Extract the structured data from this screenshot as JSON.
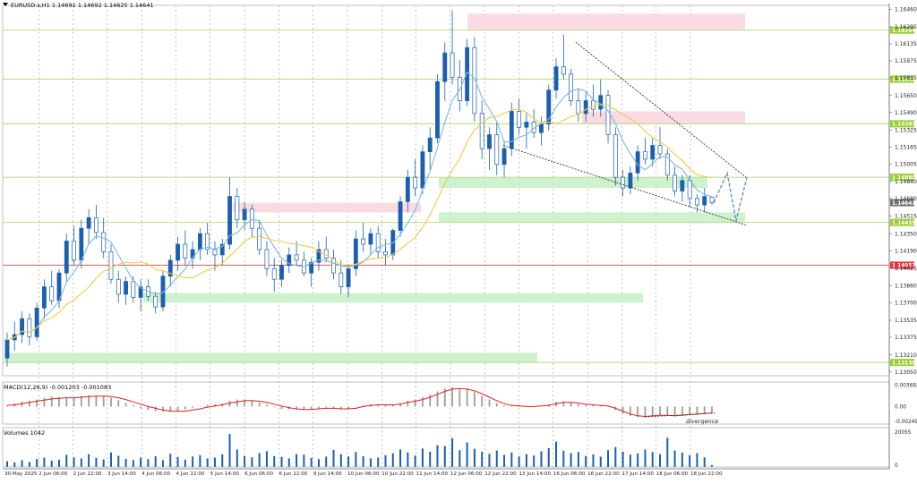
{
  "header": {
    "symbol_line": "EURUSD.s,H1  1.14691  1.14692  1.14625  1.14641"
  },
  "colors": {
    "bull_candle": "#1f5fa8",
    "bear_candle": "#1f5fa8",
    "ma_fast": "#7fb8e0",
    "ma_slow": "#f2c94c",
    "resistance_zone": "#f8d7de",
    "support_zone": "#c9f0c9",
    "level_line": "#b6d77a",
    "key_line": "#e05a5a",
    "macd_hist": "#9e9e9e",
    "macd_signal": "#e02020",
    "volume_bar": "#1f5fa8",
    "trend_line": "#333333",
    "price_tag_green": "#9acd32",
    "price_tag_red": "#e0303a",
    "price_tag_grey": "#707070"
  },
  "chart_data": [
    {
      "type": "candlestick",
      "title": "EURUSD.s,H1",
      "ohlc_last": {
        "open": 1.14691,
        "high": 1.14692,
        "low": 1.14625,
        "close": 1.14641
      },
      "y_axis_labels": [
        "1.16460",
        "1.16295",
        "1.16135",
        "1.15975",
        "1.15815",
        "1.15650",
        "1.15490",
        "1.15325",
        "1.15165",
        "1.15005",
        "1.14840",
        "1.14680",
        "1.14515",
        "1.14350",
        "1.14190",
        "1.14025",
        "1.13860",
        "1.13700",
        "1.13535",
        "1.13375",
        "1.13210",
        "1.13050"
      ],
      "ylim": [
        1.1303,
        1.1648
      ],
      "x_axis_labels": [
        "30 May 2025",
        "2 Jun 06:00",
        "2 Jun 22:00",
        "3 Jun 14:00",
        "4 Jun 06:00",
        "4 Jun 22:00",
        "5 Jun 14:00",
        "6 Jun 06:00",
        "6 Jun 22:00",
        "9 Jun 14:00",
        "10 Jun 06:00",
        "10 Jun 22:00",
        "11 Jun 14:00",
        "12 Jun 06:00",
        "12 Jun 22:00",
        "13 Jun 14:00",
        "16 Jun 06:00",
        "16 Jun 22:00",
        "17 Jun 14:00",
        "18 Jun 06:00",
        "18 Jun 22:00"
      ],
      "price_tags": [
        {
          "label": "1.16264",
          "value": 1.16264,
          "style": "green"
        },
        {
          "label": "1.15802",
          "value": 1.15802,
          "style": "green"
        },
        {
          "label": "1.15383",
          "value": 1.15383,
          "style": "green"
        },
        {
          "label": "1.14880",
          "value": 1.1488,
          "style": "green"
        },
        {
          "label": "1.14641",
          "value": 1.14641,
          "style": "grey"
        },
        {
          "label": "1.14455",
          "value": 1.14455,
          "style": "green"
        },
        {
          "label": "1.14053",
          "value": 1.14053,
          "style": "red"
        },
        {
          "label": "1.13138",
          "value": 1.13138,
          "style": "green"
        }
      ],
      "zones": [
        {
          "kind": "resistance",
          "from": 1.16264,
          "to": 1.1642,
          "start_label": "12 Jun 06:00"
        },
        {
          "kind": "resistance",
          "from": 1.15383,
          "to": 1.155,
          "start_label": "16 Jun 22:00"
        },
        {
          "kind": "resistance",
          "from": 1.1455,
          "to": 1.1464,
          "start_label": "5 Jun 14:00"
        },
        {
          "kind": "support",
          "from": 1.1478,
          "to": 1.1488,
          "start_label": "11 Jun 14:00"
        },
        {
          "kind": "support",
          "from": 1.14455,
          "to": 1.1455,
          "start_label": "11 Jun 14:00"
        },
        {
          "kind": "support",
          "from": 1.137,
          "to": 1.1379,
          "start_label": "4 Jun 06:00"
        },
        {
          "kind": "support",
          "from": 1.13138,
          "to": 1.1323,
          "start_label": "30 May 2025"
        }
      ],
      "candles": [
        [
          1.1318,
          1.1342,
          1.131,
          1.1335
        ],
        [
          1.1335,
          1.1352,
          1.1325,
          1.134
        ],
        [
          1.134,
          1.1362,
          1.1332,
          1.1355
        ],
        [
          1.1355,
          1.136,
          1.133,
          1.1338
        ],
        [
          1.1338,
          1.137,
          1.1334,
          1.1365
        ],
        [
          1.1365,
          1.1392,
          1.1355,
          1.1385
        ],
        [
          1.1385,
          1.14,
          1.1368,
          1.1372
        ],
        [
          1.1372,
          1.1402,
          1.1365,
          1.1398
        ],
        [
          1.1398,
          1.1435,
          1.139,
          1.1428
        ],
        [
          1.1428,
          1.1442,
          1.1405,
          1.141
        ],
        [
          1.141,
          1.1448,
          1.1402,
          1.144
        ],
        [
          1.144,
          1.1458,
          1.1425,
          1.145
        ],
        [
          1.145,
          1.1462,
          1.143,
          1.1436
        ],
        [
          1.1436,
          1.145,
          1.1412,
          1.1418
        ],
        [
          1.1418,
          1.1425,
          1.1388,
          1.1392
        ],
        [
          1.1392,
          1.14,
          1.137,
          1.1378
        ],
        [
          1.1378,
          1.1395,
          1.1368,
          1.139
        ],
        [
          1.139,
          1.1395,
          1.137,
          1.1375
        ],
        [
          1.1375,
          1.1392,
          1.1362,
          1.1385
        ],
        [
          1.1385,
          1.1392,
          1.1372,
          1.1376
        ],
        [
          1.1376,
          1.138,
          1.136,
          1.1366
        ],
        [
          1.1366,
          1.14,
          1.1362,
          1.1395
        ],
        [
          1.1395,
          1.1415,
          1.1385,
          1.141
        ],
        [
          1.141,
          1.1432,
          1.14,
          1.1425
        ],
        [
          1.1425,
          1.1438,
          1.1405,
          1.1412
        ],
        [
          1.1412,
          1.1428,
          1.1402,
          1.142
        ],
        [
          1.142,
          1.144,
          1.141,
          1.1435
        ],
        [
          1.1435,
          1.1445,
          1.1415,
          1.142
        ],
        [
          1.142,
          1.1428,
          1.14,
          1.1415
        ],
        [
          1.1415,
          1.143,
          1.1405,
          1.1425
        ],
        [
          1.1425,
          1.1488,
          1.142,
          1.147
        ],
        [
          1.147,
          1.1478,
          1.144,
          1.1448
        ],
        [
          1.1448,
          1.1465,
          1.1438,
          1.1458
        ],
        [
          1.1458,
          1.1462,
          1.1432,
          1.144
        ],
        [
          1.144,
          1.1448,
          1.1415,
          1.142
        ],
        [
          1.142,
          1.1428,
          1.1395,
          1.1402
        ],
        [
          1.1402,
          1.1412,
          1.138,
          1.1392
        ],
        [
          1.1392,
          1.141,
          1.1385,
          1.1405
        ],
        [
          1.1405,
          1.1422,
          1.1398,
          1.1415
        ],
        [
          1.1415,
          1.1428,
          1.1405,
          1.141
        ],
        [
          1.141,
          1.1418,
          1.1395,
          1.1398
        ],
        [
          1.1398,
          1.1412,
          1.1385,
          1.1408
        ],
        [
          1.1408,
          1.1428,
          1.14,
          1.142
        ],
        [
          1.142,
          1.1432,
          1.1408,
          1.1412
        ],
        [
          1.1412,
          1.142,
          1.1392,
          1.1398
        ],
        [
          1.1398,
          1.141,
          1.1378,
          1.1385
        ],
        [
          1.1385,
          1.1405,
          1.1375,
          1.1402
        ],
        [
          1.1402,
          1.1438,
          1.1395,
          1.143
        ],
        [
          1.143,
          1.1445,
          1.1418,
          1.1425
        ],
        [
          1.1425,
          1.144,
          1.1415,
          1.1435
        ],
        [
          1.1435,
          1.1442,
          1.1412,
          1.1418
        ],
        [
          1.1418,
          1.143,
          1.1405,
          1.1415
        ],
        [
          1.1415,
          1.144,
          1.141,
          1.1438
        ],
        [
          1.1438,
          1.147,
          1.1432,
          1.1465
        ],
        [
          1.1465,
          1.1495,
          1.1455,
          1.1488
        ],
        [
          1.1488,
          1.1505,
          1.147,
          1.1478
        ],
        [
          1.1478,
          1.1518,
          1.1472,
          1.1512
        ],
        [
          1.1512,
          1.1535,
          1.1495,
          1.1525
        ],
        [
          1.1525,
          1.1585,
          1.152,
          1.1578
        ],
        [
          1.1578,
          1.1615,
          1.156,
          1.1605
        ],
        [
          1.1605,
          1.1645,
          1.1575,
          1.1582
        ],
        [
          1.1582,
          1.1598,
          1.155,
          1.156
        ],
        [
          1.156,
          1.1618,
          1.1555,
          1.161
        ],
        [
          1.161,
          1.162,
          1.154,
          1.1548
        ],
        [
          1.1548,
          1.156,
          1.1505,
          1.1515
        ],
        [
          1.1515,
          1.1535,
          1.1495,
          1.1528
        ],
        [
          1.1528,
          1.154,
          1.149,
          1.15
        ],
        [
          1.15,
          1.1522,
          1.1488,
          1.1515
        ],
        [
          1.1515,
          1.1558,
          1.1508,
          1.155
        ],
        [
          1.155,
          1.1562,
          1.1528,
          1.1535
        ],
        [
          1.1535,
          1.1548,
          1.1515,
          1.154
        ],
        [
          1.154,
          1.1552,
          1.1525,
          1.153
        ],
        [
          1.153,
          1.1545,
          1.1518,
          1.1538
        ],
        [
          1.1538,
          1.1575,
          1.1532,
          1.157
        ],
        [
          1.157,
          1.16,
          1.1562,
          1.1592
        ],
        [
          1.1592,
          1.1622,
          1.158,
          1.1585
        ],
        [
          1.1585,
          1.159,
          1.1555,
          1.156
        ],
        [
          1.156,
          1.1572,
          1.154,
          1.1548
        ],
        [
          1.1548,
          1.1568,
          1.154,
          1.156
        ],
        [
          1.156,
          1.1575,
          1.1545,
          1.1552
        ],
        [
          1.1552,
          1.158,
          1.1545,
          1.1565
        ],
        [
          1.1565,
          1.157,
          1.152,
          1.1528
        ],
        [
          1.1528,
          1.1535,
          1.148,
          1.1488
        ],
        [
          1.1488,
          1.1495,
          1.147,
          1.1478
        ],
        [
          1.1478,
          1.1498,
          1.1472,
          1.1492
        ],
        [
          1.1492,
          1.1518,
          1.1485,
          1.1512
        ],
        [
          1.1512,
          1.1525,
          1.15,
          1.1505
        ],
        [
          1.1505,
          1.1525,
          1.1498,
          1.1518
        ],
        [
          1.1518,
          1.1535,
          1.1505,
          1.151
        ],
        [
          1.151,
          1.1515,
          1.1485,
          1.149
        ],
        [
          1.149,
          1.1498,
          1.147,
          1.1475
        ],
        [
          1.1475,
          1.149,
          1.1465,
          1.1485
        ],
        [
          1.1485,
          1.149,
          1.146,
          1.1468
        ],
        [
          1.1468,
          1.1472,
          1.1455,
          1.1462
        ],
        [
          1.1462,
          1.1478,
          1.1455,
          1.147
        ],
        [
          1.1469,
          1.1469,
          1.1462,
          1.1464
        ]
      ],
      "ma_fast_label": "",
      "ma_slow_label": ""
    },
    {
      "type": "histogram",
      "title": "MACD(12,26,9) -0.001203 -0.001083",
      "y_axis_labels": [
        "0.003692",
        "0.00",
        "-0.002494"
      ],
      "ylim": [
        -0.0027,
        0.0039
      ],
      "annotation": "divergence",
      "histogram": [
        0.0002,
        0.0005,
        0.0008,
        0.001,
        0.0012,
        0.0015,
        0.0017,
        0.0016,
        0.0015,
        0.0016,
        0.0018,
        0.0019,
        0.0019,
        0.0018,
        0.0015,
        0.0011,
        0.0006,
        0.0002,
        -0.0003,
        -0.0006,
        -0.0008,
        -0.0009,
        -0.0009,
        -0.0008,
        -0.0005,
        -0.0002,
        0.0001,
        0.0003,
        0.0004,
        0.0005,
        0.001,
        0.0012,
        0.0012,
        0.001,
        0.0007,
        0.0003,
        -0.0001,
        -0.0004,
        -0.0005,
        -0.0005,
        -0.0006,
        -0.0005,
        -0.0003,
        -0.0002,
        -0.0003,
        -0.0005,
        -0.0004,
        -0.0001,
        0.0002,
        0.0004,
        0.0004,
        0.0003,
        0.0003,
        0.0006,
        0.001,
        0.0012,
        0.0016,
        0.002,
        0.0026,
        0.0031,
        0.0033,
        0.003,
        0.003,
        0.0025,
        0.0018,
        0.0012,
        0.0006,
        0.0002,
        0.0001,
        0.0,
        0.0,
        0.0,
        0.0001,
        0.0004,
        0.0008,
        0.0009,
        0.0007,
        0.0004,
        0.0003,
        0.0002,
        0.0002,
        0.0,
        -0.0006,
        -0.0012,
        -0.0016,
        -0.0018,
        -0.0018,
        -0.0016,
        -0.0015,
        -0.0016,
        -0.0017,
        -0.0015,
        -0.0014,
        -0.0014,
        -0.0013,
        -0.0012
      ],
      "signal": [
        0.0002,
        0.0003,
        0.0005,
        0.0007,
        0.0009,
        0.0011,
        0.0013,
        0.0014,
        0.0015,
        0.0015,
        0.0016,
        0.0017,
        0.0018,
        0.0018,
        0.0017,
        0.0015,
        0.0012,
        0.0008,
        0.0004,
        0.0,
        -0.0003,
        -0.0006,
        -0.0008,
        -0.0008,
        -0.0008,
        -0.0006,
        -0.0004,
        -0.0001,
        0.0001,
        0.0003,
        0.0006,
        0.0008,
        0.001,
        0.001,
        0.0009,
        0.0007,
        0.0004,
        0.0001,
        -0.0002,
        -0.0004,
        -0.0005,
        -0.0005,
        -0.0004,
        -0.0003,
        -0.0003,
        -0.0004,
        -0.0004,
        -0.0003,
        0.0,
        0.0002,
        0.0003,
        0.0003,
        0.0003,
        0.0004,
        0.0007,
        0.0009,
        0.0012,
        0.0016,
        0.0021,
        0.0026,
        0.003,
        0.0031,
        0.003,
        0.0027,
        0.0022,
        0.0016,
        0.001,
        0.0005,
        0.0002,
        0.0001,
        0.0,
        0.0,
        0.0001,
        0.0002,
        0.0005,
        0.0007,
        0.0007,
        0.0006,
        0.0004,
        0.0003,
        0.0002,
        0.0001,
        -0.0003,
        -0.0008,
        -0.0013,
        -0.0016,
        -0.0017,
        -0.0016,
        -0.0015,
        -0.0015,
        -0.0016,
        -0.0015,
        -0.0014,
        -0.0013,
        -0.0012,
        -0.0011
      ]
    },
    {
      "type": "bar",
      "title": "Volumes 1042",
      "y_axis_labels": [
        "20055",
        "0"
      ],
      "ylim": [
        0,
        20055
      ],
      "values": [
        3200,
        2600,
        3800,
        2900,
        4500,
        5200,
        3600,
        4100,
        6800,
        5400,
        4800,
        7200,
        5100,
        4200,
        8200,
        6300,
        4600,
        3900,
        5200,
        4400,
        6100,
        3800,
        7400,
        5600,
        4100,
        5900,
        6600,
        4800,
        5200,
        7100,
        18500,
        9800,
        6200,
        5400,
        7800,
        8900,
        6100,
        5600,
        4800,
        7300,
        6900,
        5100,
        4400,
        5800,
        9600,
        7200,
        5900,
        8400,
        6100,
        4800,
        5300,
        6600,
        7700,
        9800,
        8200,
        6400,
        10400,
        8600,
        12200,
        11800,
        16200,
        9400,
        13800,
        10200,
        8600,
        7400,
        9200,
        6800,
        8100,
        5900,
        7200,
        6400,
        8800,
        10600,
        14200,
        9100,
        7800,
        8400,
        6200,
        7100,
        5800,
        9400,
        11200,
        8600,
        6900,
        7600,
        9800,
        8400,
        7200,
        16400,
        9200,
        8100,
        6600,
        7800,
        5400,
        1042
      ]
    }
  ]
}
